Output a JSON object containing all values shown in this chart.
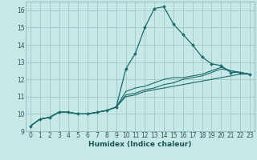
{
  "xlabel": "Humidex (Indice chaleur)",
  "xlim": [
    -0.5,
    23.5
  ],
  "ylim": [
    9,
    16.5
  ],
  "bg_color": "#c8e8e8",
  "grid_color": "#a0c8c8",
  "line_color": "#1a6b6b",
  "xticks": [
    0,
    1,
    2,
    3,
    4,
    5,
    6,
    7,
    8,
    9,
    10,
    11,
    12,
    13,
    14,
    15,
    16,
    17,
    18,
    19,
    20,
    21,
    22,
    23
  ],
  "yticks": [
    9,
    10,
    11,
    12,
    13,
    14,
    15,
    16
  ],
  "series": [
    [
      9.3,
      9.7,
      9.8,
      10.1,
      10.1,
      10.0,
      10.0,
      10.1,
      10.2,
      10.4,
      12.6,
      13.5,
      15.0,
      16.1,
      16.2,
      15.2,
      14.6,
      14.0,
      13.3,
      12.9,
      12.8,
      12.4,
      12.4,
      12.3
    ],
    [
      9.3,
      9.7,
      9.8,
      10.1,
      10.1,
      10.0,
      10.0,
      10.1,
      10.2,
      10.4,
      11.3,
      11.5,
      11.6,
      11.8,
      12.0,
      12.1,
      12.1,
      12.2,
      12.3,
      12.5,
      12.7,
      12.5,
      12.4,
      12.3
    ],
    [
      9.3,
      9.7,
      9.8,
      10.1,
      10.1,
      10.0,
      10.0,
      10.1,
      10.2,
      10.4,
      11.1,
      11.2,
      11.4,
      11.5,
      11.7,
      11.8,
      12.0,
      12.1,
      12.2,
      12.4,
      12.6,
      12.5,
      12.4,
      12.3
    ],
    [
      9.3,
      9.7,
      9.8,
      10.1,
      10.1,
      10.0,
      10.0,
      10.1,
      10.2,
      10.4,
      11.0,
      11.1,
      11.3,
      11.4,
      11.5,
      11.6,
      11.7,
      11.8,
      11.9,
      12.0,
      12.1,
      12.2,
      12.3,
      12.3
    ]
  ]
}
